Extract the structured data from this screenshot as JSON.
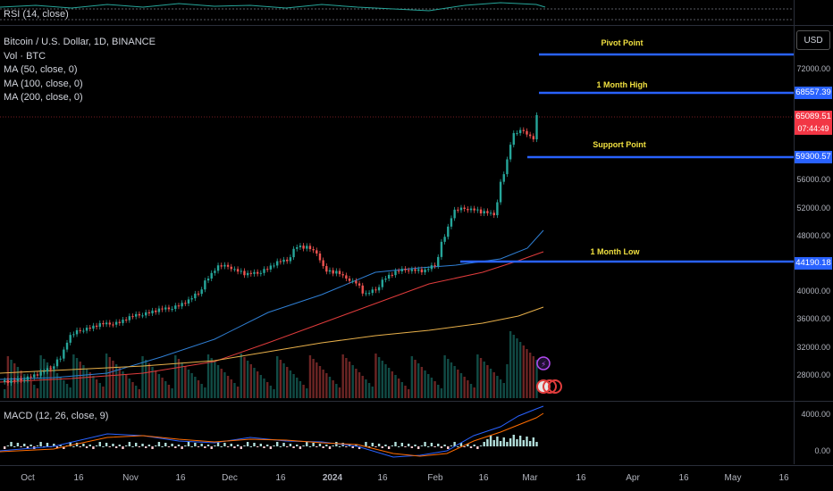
{
  "rsi": {
    "label": "RSI (14, close)"
  },
  "legend": {
    "title": "Bitcoin / U.S. Dollar, 1D, BINANCE",
    "vol": "Vol · BTC",
    "ma50": "MA (50, close, 0)",
    "ma100": "MA (100, close, 0)",
    "ma200": "MA (200, close, 0)"
  },
  "currency_button": "USD",
  "price_ticks": [
    "72000.00",
    "56000.00",
    "52000.00",
    "48000.00",
    "40000.00",
    "36000.00",
    "32000.00",
    "28000.00"
  ],
  "price_labels": {
    "month_high": "68557.39",
    "last": "65089.51",
    "countdown": "07:44:49",
    "support": "59300.57",
    "month_low": "44190.18"
  },
  "levels": {
    "pivot": "Pivot Point",
    "month_high": "1 Month High",
    "support": "Support Point",
    "month_low": "1 Month Low"
  },
  "macd": {
    "label": "MACD (12, 26, close, 9)",
    "ticks": [
      "4000.00",
      "0.00"
    ]
  },
  "time_axis": [
    "Oct",
    "16",
    "Nov",
    "16",
    "Dec",
    "16",
    "2024",
    "16",
    "Feb",
    "16",
    "Mar",
    "16",
    "Apr",
    "16",
    "May",
    "16"
  ],
  "colors": {
    "up": "#26a69a",
    "down": "#ef5350",
    "ma50": "#2f7fd4",
    "ma100": "#e03c3c",
    "ma200": "#e8b04a",
    "level_line": "#2962ff",
    "level_text": "#f0e040",
    "last_price": "#f23645"
  },
  "chart_data": {
    "type": "candlestick",
    "symbol": "Bitcoin / U.S. Dollar",
    "interval": "1D",
    "exchange": "BINANCE",
    "ylim": [
      24000,
      76000
    ],
    "x": [
      "Oct",
      "16",
      "Nov",
      "16",
      "Dec",
      "16",
      "2024",
      "16",
      "Feb",
      "16",
      "Mar",
      "16",
      "Apr",
      "16",
      "May",
      "16"
    ],
    "close_approx": [
      27000,
      27400,
      27800,
      28200,
      29000,
      30500,
      33500,
      34500,
      34800,
      35200,
      35400,
      35600,
      36200,
      36700,
      37000,
      37300,
      37600,
      38000,
      38600,
      39800,
      42000,
      43500,
      43700,
      43000,
      42400,
      42700,
      43300,
      44100,
      44500,
      46500,
      46300,
      45600,
      43000,
      42700,
      42000,
      41300,
      39500,
      40300,
      42000,
      42700,
      43200,
      43100,
      42900,
      43800,
      48000,
      51500,
      52000,
      51800,
      51300,
      51100,
      57000,
      62500,
      63200,
      62000,
      65089.51
    ],
    "levels": {
      "Pivot Point": 74000,
      "1 Month High": 68557.39,
      "Support Point": 59300.57,
      "1 Month Low": 44190.18
    },
    "last_price": 65089.51
  }
}
